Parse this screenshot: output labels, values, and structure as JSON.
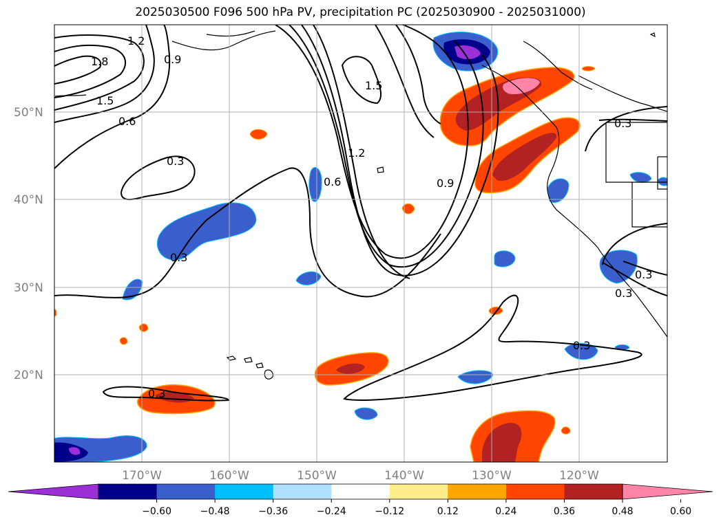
{
  "title": "2025030500 F096 500 hPa PV, precipitation PC (2025030900 - 2025031000)",
  "lat_labels": [
    "50°N",
    "40°N",
    "30°N",
    "20°N"
  ],
  "lon_labels": [
    "170°W",
    "160°W",
    "150°W",
    "140°W",
    "130°W",
    "120°W"
  ],
  "colorbar": {
    "ticks": [
      "−0.60",
      "−0.48",
      "−0.36",
      "−0.24",
      "−0.12",
      "0.12",
      "0.24",
      "0.36",
      "0.48",
      "0.60"
    ],
    "colors": [
      "#9b30d9",
      "#00008b",
      "#3a5fcd",
      "#00bfff",
      "#b0e2ff",
      "#ffffff",
      "#ffec8b",
      "#ffa500",
      "#ff4500",
      "#b22222",
      "#ff85a8"
    ]
  },
  "contour_labels": [
    "1.2",
    "1.8",
    "1.5",
    "0.9",
    "0.6",
    "0.3",
    "1.5",
    "1.2",
    "0.6",
    "0.9",
    "0.3",
    "0.3",
    "0.3",
    "0.3",
    "0.3",
    "0.3"
  ]
}
